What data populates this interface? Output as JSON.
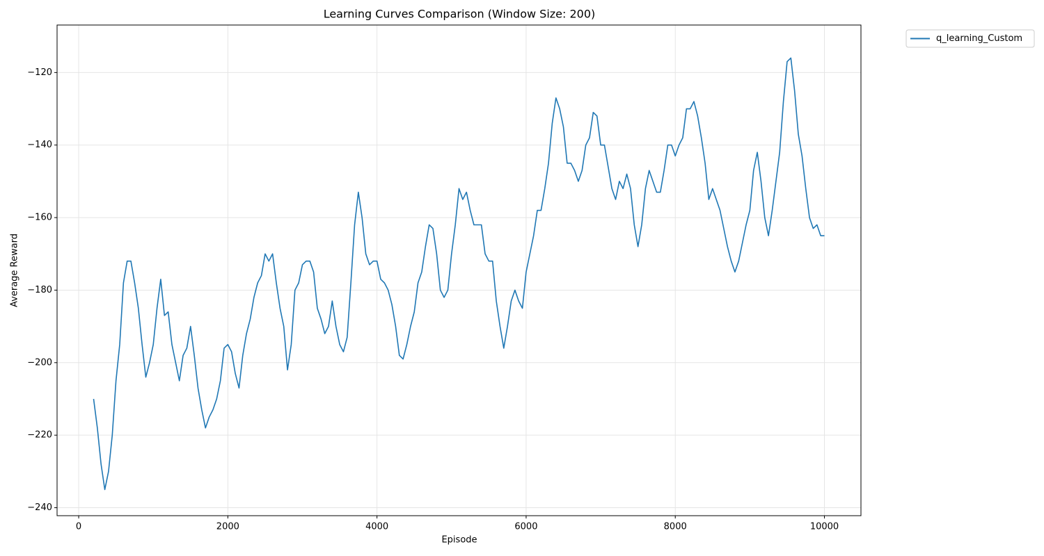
{
  "chart_data": {
    "type": "line",
    "title": "Learning Curves Comparison (Window Size: 200)",
    "x_label": "Episode",
    "y_label": "Average Reward",
    "xlim": [
      -290,
      10490
    ],
    "ylim": [
      -242.2,
      -106.9
    ],
    "xticks": [
      0,
      2000,
      4000,
      6000,
      8000,
      10000
    ],
    "yticks": [
      {
        "value": -240,
        "label": "−240"
      },
      {
        "value": -220,
        "label": "−220"
      },
      {
        "value": -200,
        "label": "−200"
      },
      {
        "value": -180,
        "label": "−180"
      },
      {
        "value": -160,
        "label": "−160"
      },
      {
        "value": -140,
        "label": "−140"
      },
      {
        "value": -120,
        "label": "−120"
      }
    ],
    "grid": true,
    "legend": "outside upper right",
    "x": [
      200,
      250,
      300,
      350,
      400,
      450,
      500,
      550,
      600,
      650,
      700,
      750,
      800,
      850,
      900,
      950,
      1000,
      1050,
      1100,
      1150,
      1200,
      1250,
      1300,
      1350,
      1400,
      1450,
      1500,
      1550,
      1600,
      1650,
      1700,
      1750,
      1800,
      1850,
      1900,
      1950,
      2000,
      2050,
      2100,
      2150,
      2200,
      2250,
      2300,
      2350,
      2400,
      2450,
      2500,
      2550,
      2600,
      2650,
      2700,
      2750,
      2800,
      2850,
      2900,
      2950,
      3000,
      3050,
      3100,
      3150,
      3200,
      3250,
      3300,
      3350,
      3400,
      3450,
      3500,
      3550,
      3600,
      3650,
      3700,
      3750,
      3800,
      3850,
      3900,
      3950,
      4000,
      4050,
      4100,
      4150,
      4200,
      4250,
      4300,
      4350,
      4400,
      4450,
      4500,
      4550,
      4600,
      4650,
      4700,
      4750,
      4800,
      4850,
      4900,
      4950,
      5000,
      5050,
      5100,
      5150,
      5200,
      5250,
      5300,
      5350,
      5400,
      5450,
      5500,
      5550,
      5600,
      5650,
      5700,
      5750,
      5800,
      5850,
      5900,
      5950,
      6000,
      6050,
      6100,
      6150,
      6200,
      6250,
      6300,
      6350,
      6400,
      6450,
      6500,
      6550,
      6600,
      6650,
      6700,
      6750,
      6800,
      6850,
      6900,
      6950,
      7000,
      7050,
      7100,
      7150,
      7200,
      7250,
      7300,
      7350,
      7400,
      7450,
      7500,
      7550,
      7600,
      7650,
      7700,
      7750,
      7800,
      7850,
      7900,
      7950,
      8000,
      8050,
      8100,
      8150,
      8200,
      8250,
      8300,
      8350,
      8400,
      8450,
      8500,
      8550,
      8600,
      8650,
      8700,
      8750,
      8800,
      8850,
      8900,
      8950,
      9000,
      9050,
      9100,
      9150,
      9200,
      9250,
      9300,
      9350,
      9400,
      9450,
      9500,
      9550,
      9600,
      9650,
      9700,
      9750,
      9800,
      9850,
      9900,
      9950,
      10000
    ],
    "series": [
      {
        "name": "q_learning_Custom",
        "color": "#1f77b4",
        "values": [
          -210,
          -218,
          -228,
          -235,
          -230,
          -220,
          -205,
          -195,
          -178,
          -172,
          -172,
          -178,
          -185,
          -195,
          -204,
          -200,
          -195,
          -185,
          -177,
          -187,
          -186,
          -195,
          -200,
          -205,
          -198,
          -196,
          -190,
          -198,
          -207,
          -213,
          -218,
          -215,
          -213,
          -210,
          -205,
          -196,
          -195,
          -197,
          -203,
          -207,
          -198,
          -192,
          -188,
          -182,
          -178,
          -176,
          -170,
          -172,
          -170,
          -178,
          -185,
          -190,
          -202,
          -195,
          -180,
          -178,
          -173,
          -172,
          -172,
          -175,
          -185,
          -188,
          -192,
          -190,
          -183,
          -190,
          -195,
          -197,
          -193,
          -178,
          -162,
          -153,
          -160,
          -170,
          -173,
          -172,
          -172,
          -177,
          -178,
          -180,
          -184,
          -190,
          -198,
          -199,
          -195,
          -190,
          -186,
          -178,
          -175,
          -168,
          -162,
          -163,
          -170,
          -180,
          -182,
          -180,
          -170,
          -162,
          -152,
          -155,
          -153,
          -158,
          -162,
          -162,
          -162,
          -170,
          -172,
          -172,
          -183,
          -190,
          -196,
          -190,
          -183,
          -180,
          -183,
          -185,
          -175,
          -170,
          -165,
          -158,
          -158,
          -152,
          -145,
          -134,
          -127,
          -130,
          -135,
          -145,
          -145,
          -147,
          -150,
          -147,
          -140,
          -138,
          -131,
          -132,
          -140,
          -140,
          -146,
          -152,
          -155,
          -150,
          -152,
          -148,
          -152,
          -162,
          -168,
          -162,
          -152,
          -147,
          -150,
          -153,
          -153,
          -147,
          -140,
          -140,
          -143,
          -140,
          -138,
          -130,
          -130,
          -128,
          -132,
          -138,
          -145,
          -155,
          -152,
          -155,
          -158,
          -163,
          -168,
          -172,
          -175,
          -172,
          -167,
          -162,
          -158,
          -147,
          -142,
          -150,
          -160,
          -165,
          -158,
          -150,
          -142,
          -128,
          -117,
          -116,
          -125,
          -137,
          -143,
          -152,
          -160,
          -163,
          -162,
          -165,
          -165
        ]
      }
    ]
  }
}
